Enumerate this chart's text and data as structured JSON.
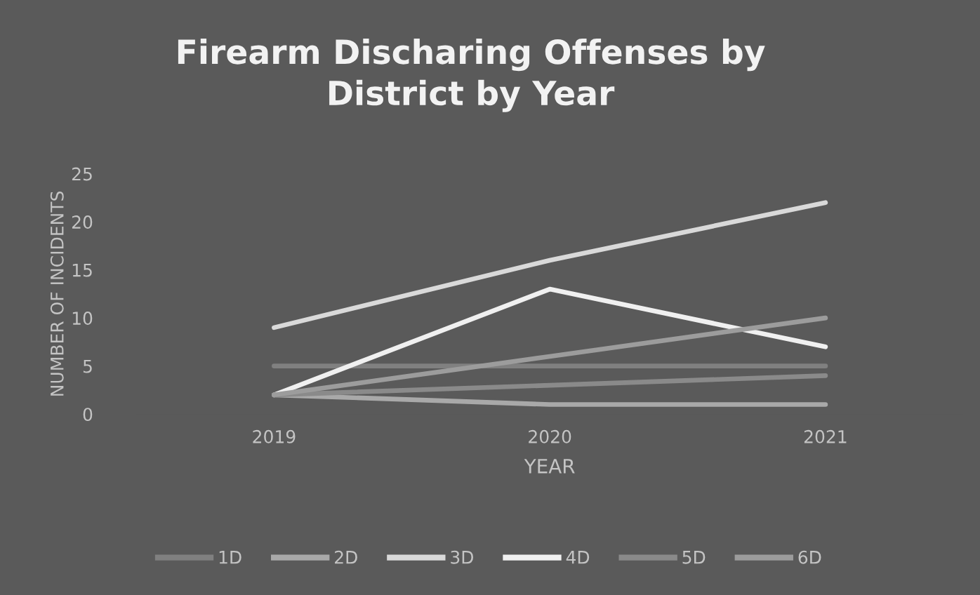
{
  "chart_data": {
    "type": "line",
    "title": "Firearm Discharing Offenses by District by Year",
    "xlabel": "YEAR",
    "ylabel": "NUMBER OF INCIDENTS",
    "categories": [
      "2019",
      "2020",
      "2021"
    ],
    "ylim": [
      0,
      25
    ],
    "yticks": [
      0,
      5,
      10,
      15,
      20,
      25
    ],
    "grid": false,
    "legend": "bottom",
    "marker": "none",
    "line_style": "solid",
    "series": [
      {
        "name": "1D",
        "color": "#808080",
        "values": [
          5,
          5,
          5
        ]
      },
      {
        "name": "2D",
        "color": "#a9a9a9",
        "values": [
          2,
          1,
          1
        ]
      },
      {
        "name": "3D",
        "color": "#d9d9d9",
        "values": [
          9,
          16,
          22
        ]
      },
      {
        "name": "4D",
        "color": "#f0f0f0",
        "values": [
          2,
          13,
          7
        ]
      },
      {
        "name": "5D",
        "color": "#8a8a8a",
        "values": [
          2,
          3,
          4
        ]
      },
      {
        "name": "6D",
        "color": "#9c9c9c",
        "values": [
          2,
          6,
          10
        ]
      }
    ]
  }
}
